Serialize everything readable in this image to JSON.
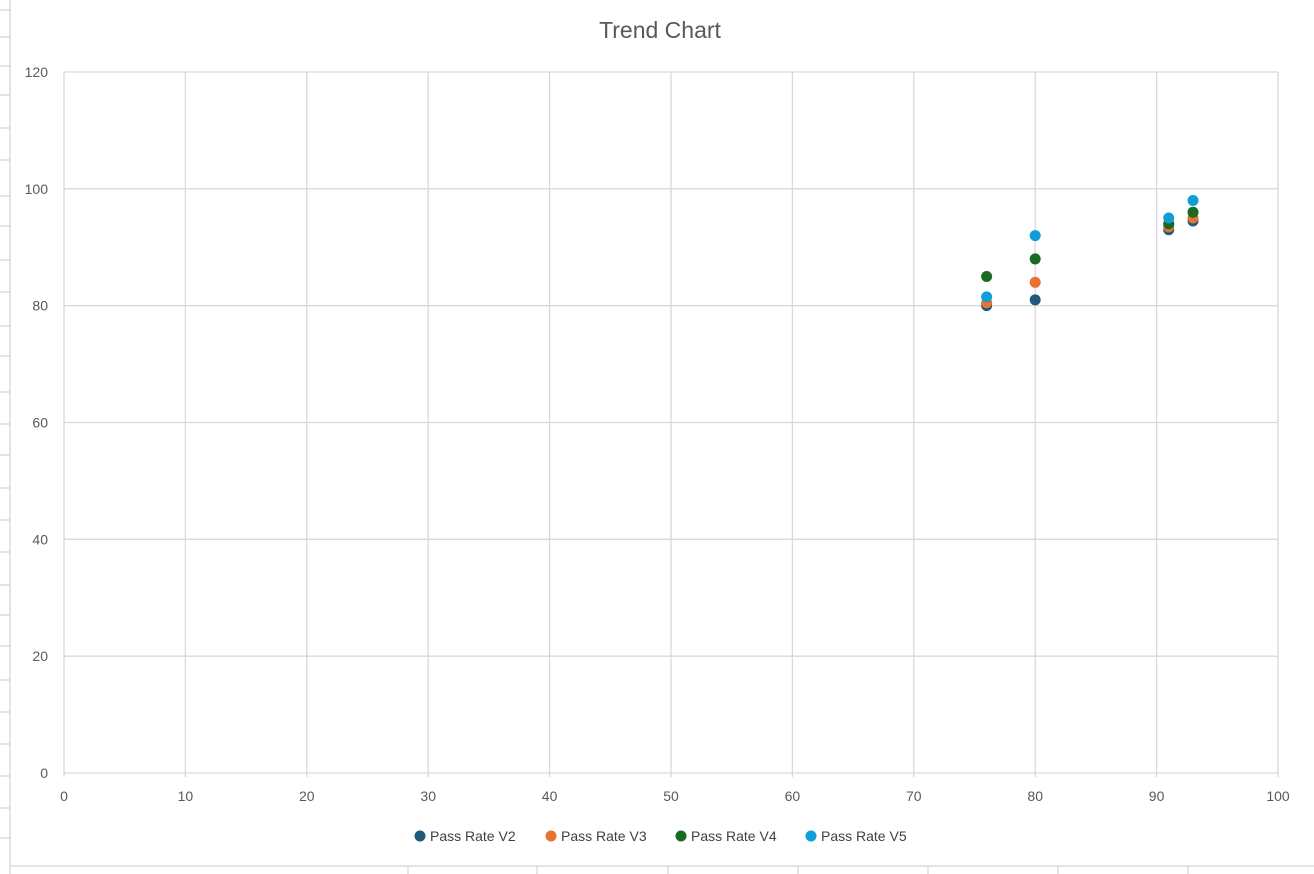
{
  "chart_data": {
    "type": "scatter",
    "title": "Trend Chart",
    "xlabel": "",
    "ylabel": "",
    "xlim": [
      0,
      100
    ],
    "ylim": [
      0,
      120
    ],
    "x_ticks": [
      0,
      10,
      20,
      30,
      40,
      50,
      60,
      70,
      80,
      90,
      100
    ],
    "y_ticks": [
      0,
      20,
      40,
      60,
      80,
      100,
      120
    ],
    "grid": true,
    "legend_position": "bottom",
    "series": [
      {
        "name": "Pass Rate V2",
        "color": "#1f5a7e",
        "points": [
          {
            "x": 76,
            "y": 80
          },
          {
            "x": 80,
            "y": 81
          },
          {
            "x": 91,
            "y": 93
          },
          {
            "x": 93,
            "y": 94.5
          }
        ]
      },
      {
        "name": "Pass Rate V3",
        "color": "#e97132",
        "points": [
          {
            "x": 76,
            "y": 80.5
          },
          {
            "x": 80,
            "y": 84
          },
          {
            "x": 91,
            "y": 93.5
          },
          {
            "x": 93,
            "y": 95
          }
        ]
      },
      {
        "name": "Pass Rate V4",
        "color": "#196b24",
        "points": [
          {
            "x": 76,
            "y": 85
          },
          {
            "x": 80,
            "y": 88
          },
          {
            "x": 91,
            "y": 94
          },
          {
            "x": 93,
            "y": 96
          }
        ]
      },
      {
        "name": "Pass Rate V5",
        "color": "#0f9ed5",
        "points": [
          {
            "x": 76,
            "y": 81.5
          },
          {
            "x": 80,
            "y": 92
          },
          {
            "x": 91,
            "y": 95
          },
          {
            "x": 93,
            "y": 98
          }
        ]
      }
    ]
  }
}
